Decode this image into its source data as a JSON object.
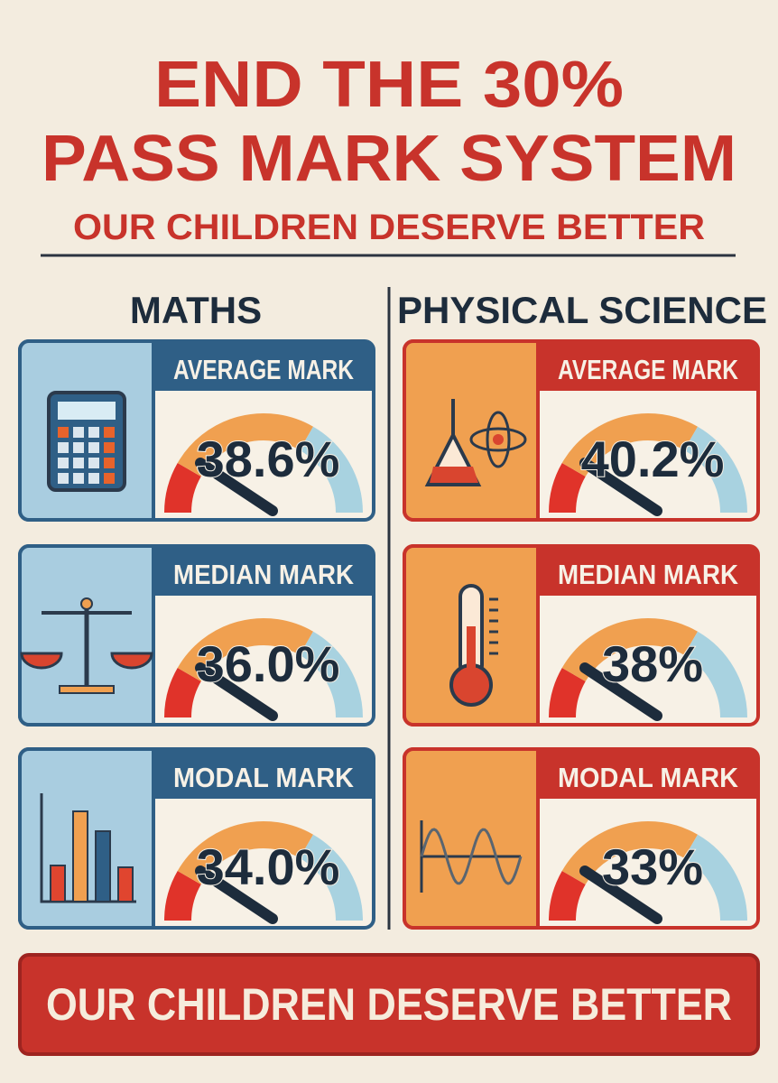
{
  "header": {
    "title_line1": "END THE 30%",
    "title_line2": "PASS MARK SYSTEM",
    "subtitle": "OUR CHILDREN DESERVE BETTER"
  },
  "columns": [
    {
      "heading": "MATHS",
      "cards": [
        {
          "label": "AVERAGE MARK",
          "value": "38.6%"
        },
        {
          "label": "MEDIAN MARK",
          "value": "36.0%"
        },
        {
          "label": "MODAL MARK",
          "value": "34.0%"
        }
      ]
    },
    {
      "heading": "PHYSICAL SCIENCE",
      "cards": [
        {
          "label": "AVERAGE MARK",
          "value": "40.2%"
        },
        {
          "label": "MEDIAN MARK",
          "value": "38%"
        },
        {
          "label": "MODAL MARK",
          "value": "33%"
        }
      ]
    }
  ],
  "footer": {
    "banner": "OUR CHILDREN DESERVE BETTER"
  }
}
